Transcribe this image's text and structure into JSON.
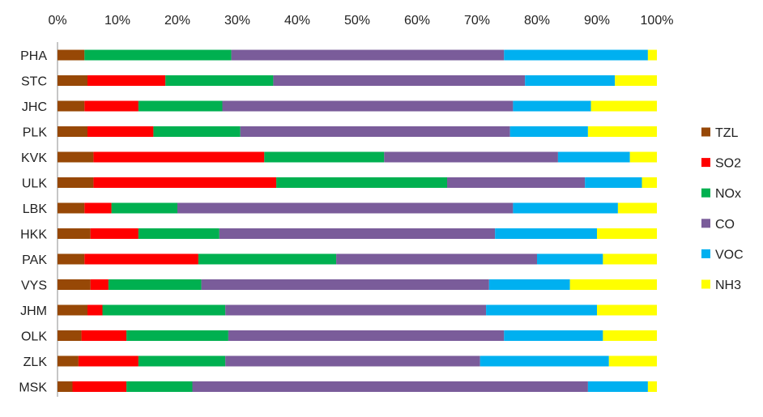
{
  "chart_data": {
    "type": "bar",
    "orientation": "horizontal",
    "stacked": "percent",
    "title": "",
    "xlabel": "",
    "ylabel": "",
    "xlim": [
      0,
      100
    ],
    "x_ticks": [
      "0%",
      "10%",
      "20%",
      "30%",
      "40%",
      "50%",
      "60%",
      "70%",
      "80%",
      "90%",
      "100%"
    ],
    "x_axis_position": "top",
    "grid": false,
    "legend_position": "right",
    "categories": [
      "PHA",
      "STC",
      "JHC",
      "PLK",
      "KVK",
      "ULK",
      "LBK",
      "HKK",
      "PAK",
      "VYS",
      "JHM",
      "OLK",
      "ZLK",
      "MSK"
    ],
    "series": [
      {
        "name": "TZL",
        "color": "#974806",
        "values": [
          4.5,
          5,
          4.5,
          5,
          6,
          6,
          4.5,
          5.5,
          4.5,
          5.5,
          5,
          4,
          3.5,
          2.5
        ]
      },
      {
        "name": "SO2",
        "color": "#ff0000",
        "values": [
          0,
          13,
          9,
          11,
          28.5,
          30.5,
          4.5,
          8,
          19,
          3,
          2.5,
          7.5,
          10,
          9
        ]
      },
      {
        "name": "NOx",
        "color": "#00b050",
        "values": [
          24.5,
          18,
          14,
          14.5,
          20,
          28.5,
          11,
          13.5,
          23,
          15.5,
          20.5,
          17,
          14.5,
          11
        ]
      },
      {
        "name": "CO",
        "color": "#7a5c9a",
        "values": [
          45.5,
          42,
          48.5,
          45,
          29,
          23,
          56,
          46,
          33.5,
          48,
          43.5,
          46,
          42.5,
          66
        ]
      },
      {
        "name": "VOC",
        "color": "#00b0f0",
        "values": [
          24,
          15,
          13,
          13,
          12,
          9.5,
          17.5,
          17,
          11,
          13.5,
          18.5,
          16.5,
          21.5,
          10
        ]
      },
      {
        "name": "NH3",
        "color": "#ffff00",
        "values": [
          1.5,
          7,
          11,
          11.5,
          4.5,
          2.5,
          6.5,
          10,
          9,
          14.5,
          10,
          9,
          8,
          1.5
        ]
      }
    ]
  }
}
